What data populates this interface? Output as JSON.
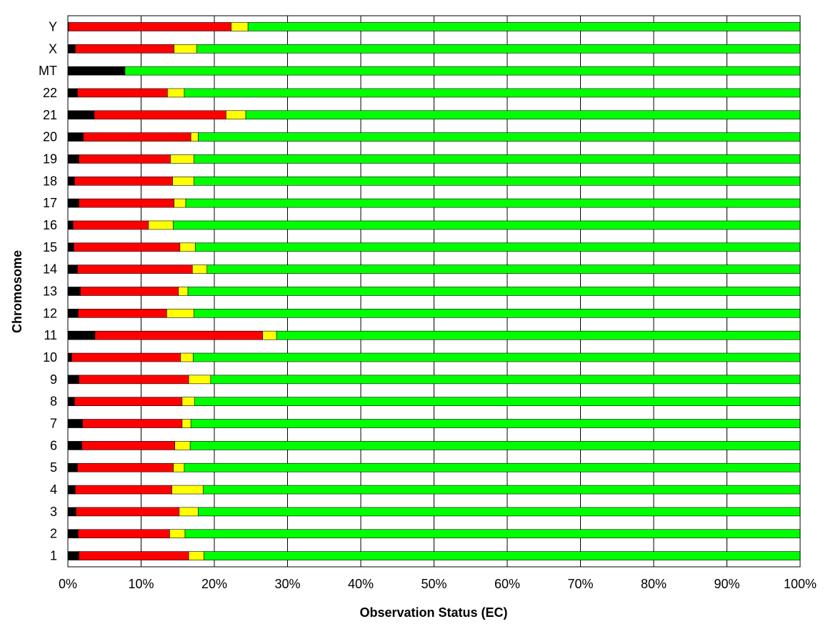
{
  "chart_data": {
    "type": "bar",
    "orientation": "horizontal",
    "stacked": "percent",
    "xlabel": "Observation Status (EC)",
    "ylabel": "Chromosome",
    "xlim": [
      0,
      100
    ],
    "x_ticks": [
      "0%",
      "10%",
      "20%",
      "30%",
      "40%",
      "50%",
      "60%",
      "70%",
      "80%",
      "90%",
      "100%"
    ],
    "grid": "vertical",
    "legend": "none",
    "categories": [
      "1",
      "2",
      "3",
      "4",
      "5",
      "6",
      "7",
      "8",
      "9",
      "10",
      "11",
      "12",
      "13",
      "14",
      "15",
      "16",
      "17",
      "18",
      "19",
      "20",
      "21",
      "22",
      "MT",
      "X",
      "Y"
    ],
    "series": [
      {
        "color": "#000000",
        "values": [
          1.5,
          1.4,
          1.1,
          1.0,
          1.3,
          1.9,
          2.0,
          0.9,
          1.5,
          0.5,
          3.7,
          1.4,
          1.7,
          1.3,
          0.8,
          0.7,
          1.5,
          0.9,
          1.5,
          2.1,
          3.6,
          1.3,
          7.8,
          1.0,
          0.1
        ]
      },
      {
        "color": "#ff0000",
        "values": [
          15.0,
          12.5,
          14.1,
          13.2,
          13.1,
          12.7,
          13.6,
          14.7,
          15.0,
          14.9,
          22.9,
          12.1,
          13.4,
          15.7,
          14.5,
          10.3,
          13.0,
          13.4,
          12.5,
          14.7,
          18.0,
          12.3,
          0.0,
          13.5,
          22.2
        ]
      },
      {
        "color": "#ffff00",
        "values": [
          2.1,
          2.1,
          2.6,
          4.3,
          1.5,
          2.1,
          1.2,
          1.7,
          3.0,
          1.7,
          1.9,
          3.7,
          1.3,
          2.0,
          2.1,
          3.4,
          1.6,
          2.9,
          3.2,
          1.0,
          2.7,
          2.3,
          0.0,
          3.1,
          2.3
        ]
      },
      {
        "color": "#00ff00",
        "values": [
          81.4,
          84.0,
          82.2,
          81.5,
          84.1,
          83.3,
          83.2,
          82.7,
          80.5,
          82.9,
          71.5,
          82.8,
          83.6,
          81.0,
          82.6,
          85.6,
          83.9,
          82.8,
          82.8,
          82.2,
          75.7,
          84.1,
          92.2,
          82.4,
          75.4
        ]
      }
    ]
  }
}
